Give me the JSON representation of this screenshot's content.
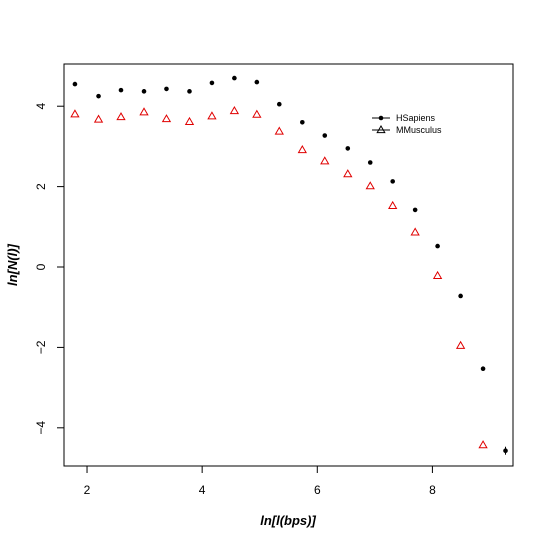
{
  "chart_data": {
    "type": "scatter",
    "title": "",
    "xlabel": "ln[l(bps)]",
    "ylabel": "ln[N(l)]",
    "xlim": [
      1.6,
      9.4
    ],
    "ylim": [
      -4.95,
      5.05
    ],
    "x_ticks": [
      2,
      4,
      6,
      8
    ],
    "y_ticks": [
      -4,
      -2,
      0,
      2,
      4
    ],
    "grid": false,
    "legend_position": "top-right",
    "series": [
      {
        "name": "HSapiens",
        "marker": "dot",
        "color": "#000000",
        "x": [
          1.79,
          2.2,
          2.59,
          2.99,
          3.38,
          3.78,
          4.17,
          4.56,
          4.95,
          5.34,
          5.74,
          6.13,
          6.53,
          6.92,
          7.31,
          7.7,
          8.09,
          8.49,
          8.88,
          9.27
        ],
        "y": [
          4.55,
          4.25,
          4.4,
          4.37,
          4.43,
          4.37,
          4.58,
          4.7,
          4.6,
          4.05,
          3.6,
          3.27,
          2.95,
          2.6,
          2.13,
          1.42,
          0.52,
          -0.72,
          -2.53,
          -4.57
        ]
      },
      {
        "name": "MMusculus",
        "marker": "triangle",
        "color": "#e00000",
        "x": [
          1.79,
          2.2,
          2.59,
          2.99,
          3.38,
          3.78,
          4.17,
          4.56,
          4.95,
          5.34,
          5.74,
          6.13,
          6.53,
          6.92,
          7.31,
          7.7,
          8.09,
          8.49,
          8.88
        ],
        "y": [
          3.8,
          3.67,
          3.73,
          3.85,
          3.68,
          3.61,
          3.75,
          3.88,
          3.79,
          3.37,
          2.91,
          2.63,
          2.31,
          2.01,
          1.52,
          0.86,
          -0.22,
          -1.96,
          -4.43
        ]
      }
    ]
  }
}
